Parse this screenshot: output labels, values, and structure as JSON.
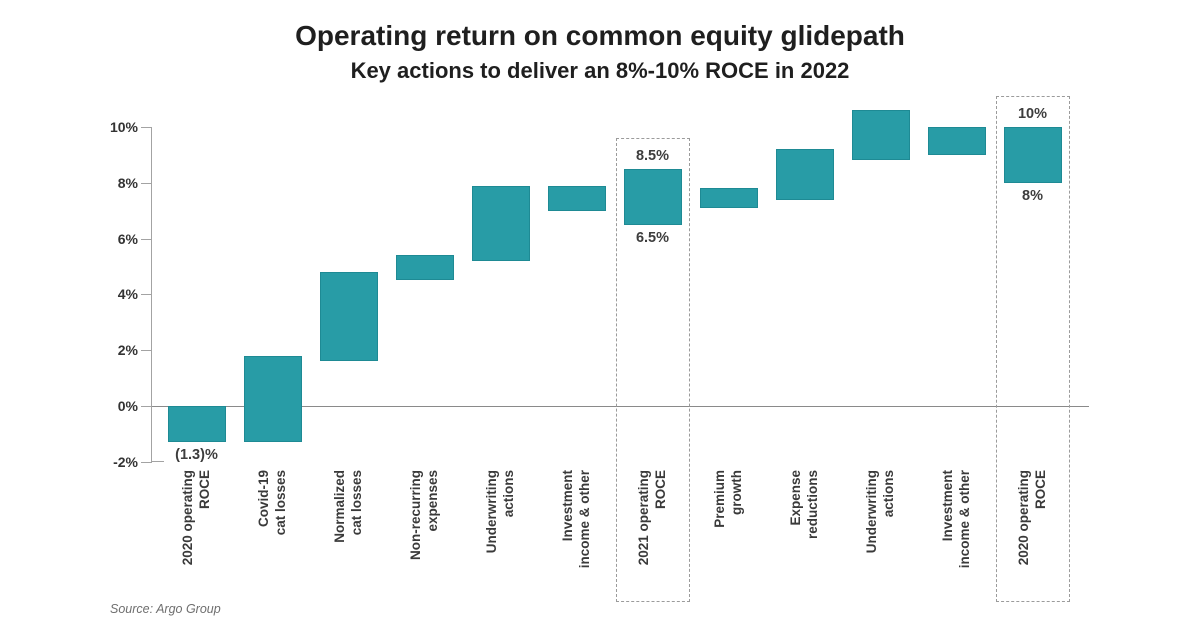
{
  "source": "Source: Argo Group",
  "chart_data": {
    "type": "bar",
    "subtype": "waterfall",
    "title": "Operating return on common equity glidepath",
    "subtitle": "Key actions to deliver an 8%-10% ROCE in 2022",
    "xlabel": "",
    "ylabel": "",
    "ylim": [
      -2,
      10.6
    ],
    "grid": false,
    "legend": "none",
    "bar_color": "#289CA6",
    "y_axis": {
      "ticks": [
        {
          "label": "10%",
          "value": 10
        },
        {
          "label": "8%",
          "value": 8
        },
        {
          "label": "6%",
          "value": 6
        },
        {
          "label": "4%",
          "value": 4
        },
        {
          "label": "2%",
          "value": 2
        },
        {
          "label": "0%",
          "value": 0
        },
        {
          "label": "-2%",
          "value": -2
        }
      ]
    },
    "bars": [
      {
        "category": "2020 operating ROCE",
        "category_lines": [
          "2020 operating",
          "ROCE"
        ],
        "start": 0,
        "end": -1.3,
        "label_below": "(1.3)%",
        "highlighted": false
      },
      {
        "category": "Covid-19 cat losses",
        "category_lines": [
          "Covid-19",
          "cat losses"
        ],
        "start": -1.3,
        "end": 1.8,
        "highlighted": false
      },
      {
        "category": "Normalized cat losses",
        "category_lines": [
          "Normalized",
          "cat losses"
        ],
        "start": 1.6,
        "end": 4.8,
        "highlighted": false
      },
      {
        "category": "Non-recurring expenses",
        "category_lines": [
          "Non-recurring",
          "expenses"
        ],
        "start": 4.5,
        "end": 5.4,
        "highlighted": false
      },
      {
        "category": "Underwriting actions",
        "category_lines": [
          "Underwriting",
          "actions"
        ],
        "start": 5.2,
        "end": 7.9,
        "highlighted": false
      },
      {
        "category": "Investment income & other",
        "category_lines": [
          "Investment",
          "income & other"
        ],
        "start": 7.0,
        "end": 7.9,
        "highlighted": false
      },
      {
        "category": "2021 operating ROCE",
        "category_lines": [
          "2021 operating",
          "ROCE"
        ],
        "start": 6.5,
        "end": 8.5,
        "label_above": "8.5%",
        "label_below": "6.5%",
        "highlighted": true
      },
      {
        "category": "Premium growth",
        "category_lines": [
          "Premium",
          "growth"
        ],
        "start": 7.1,
        "end": 7.8,
        "highlighted": false
      },
      {
        "category": "Expense reductions",
        "category_lines": [
          "Expense",
          "reductions"
        ],
        "start": 7.4,
        "end": 9.2,
        "highlighted": false
      },
      {
        "category": "Underwriting actions",
        "category_lines": [
          "Underwriting",
          "actions"
        ],
        "start": 8.8,
        "end": 10.6,
        "highlighted": false
      },
      {
        "category": "Investment income & other",
        "category_lines": [
          "Investment",
          "income & other"
        ],
        "start": 9.0,
        "end": 10.0,
        "highlighted": false
      },
      {
        "category": "2020 operating ROCE",
        "category_lines": [
          "2020 operating",
          "ROCE"
        ],
        "start": 8.0,
        "end": 10.0,
        "label_above": "10%",
        "label_below": "8%",
        "highlighted": true
      }
    ]
  }
}
